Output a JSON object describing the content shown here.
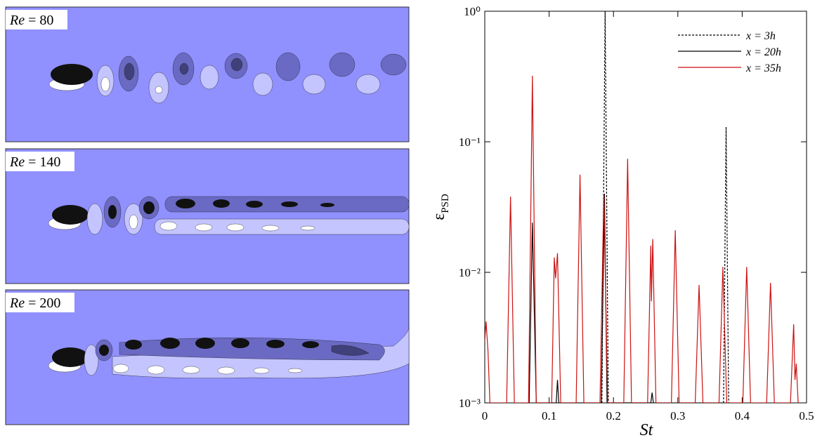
{
  "panels": [
    {
      "variable": "Re",
      "value": "= 80"
    },
    {
      "variable": "Re",
      "value": "= 140"
    },
    {
      "variable": "Re",
      "value": "= 200"
    }
  ],
  "chart_data": {
    "type": "line",
    "x_label": "St",
    "y_label_symbol": "ε",
    "y_label_subscript": "PSD",
    "xlim": [
      0,
      0.5
    ],
    "xticks": [
      0,
      0.1,
      0.2,
      0.3,
      0.4,
      0.5
    ],
    "ylim": [
      0.001,
      1
    ],
    "y_scale": "log",
    "yticks": [
      {
        "value": 0.001,
        "label": "10⁻³"
      },
      {
        "value": 0.01,
        "label": "10⁻²"
      },
      {
        "value": 0.1,
        "label": "10⁻¹"
      },
      {
        "value": 1,
        "label": "10⁰"
      }
    ],
    "legend": "upper right",
    "series": [
      {
        "name": "x = 3h",
        "color": "#000000",
        "dash": true,
        "x": [
          0.182,
          0.187,
          0.192,
          0.371,
          0.375,
          0.379
        ],
        "values": [
          0.001,
          1,
          0.001,
          0.001,
          0.13,
          0.001
        ]
      },
      {
        "name": "x = 20h",
        "color": "#000000",
        "dash": false,
        "x": [
          0.069,
          0.074,
          0.08,
          0.111,
          0.113,
          0.115,
          0.181,
          0.186,
          0.19,
          0.258,
          0.26,
          0.262
        ],
        "values": [
          0.001,
          0.024,
          0.001,
          0.001,
          0.0015,
          0.001,
          0.001,
          0.04,
          0.001,
          0.001,
          0.0012,
          0.001
        ]
      },
      {
        "name": "x = 35h",
        "color": "#cc1111",
        "dash": false,
        "x": [
          0,
          0.002,
          0.005,
          0.008,
          0.034,
          0.04,
          0.046,
          0.068,
          0.074,
          0.08,
          0.104,
          0.108,
          0.11,
          0.113,
          0.118,
          0.142,
          0.148,
          0.154,
          0.179,
          0.185,
          0.191,
          0.216,
          0.222,
          0.228,
          0.253,
          0.258,
          0.259,
          0.261,
          0.266,
          0.29,
          0.296,
          0.302,
          0.327,
          0.333,
          0.339,
          0.364,
          0.37,
          0.376,
          0.401,
          0.407,
          0.413,
          0.438,
          0.444,
          0.45,
          0.475,
          0.48,
          0.482,
          0.484,
          0.487
        ],
        "values": [
          0.003,
          0.0042,
          0.0025,
          0.001,
          0.001,
          0.038,
          0.001,
          0.001,
          0.32,
          0.001,
          0.001,
          0.013,
          0.009,
          0.014,
          0.001,
          0.001,
          0.056,
          0.001,
          0.001,
          0.04,
          0.001,
          0.001,
          0.074,
          0.001,
          0.001,
          0.016,
          0.006,
          0.018,
          0.001,
          0.001,
          0.021,
          0.001,
          0.001,
          0.008,
          0.001,
          0.001,
          0.011,
          0.001,
          0.001,
          0.011,
          0.001,
          0.001,
          0.0083,
          0.001,
          0.001,
          0.004,
          0.0015,
          0.002,
          0.001
        ]
      }
    ]
  }
}
